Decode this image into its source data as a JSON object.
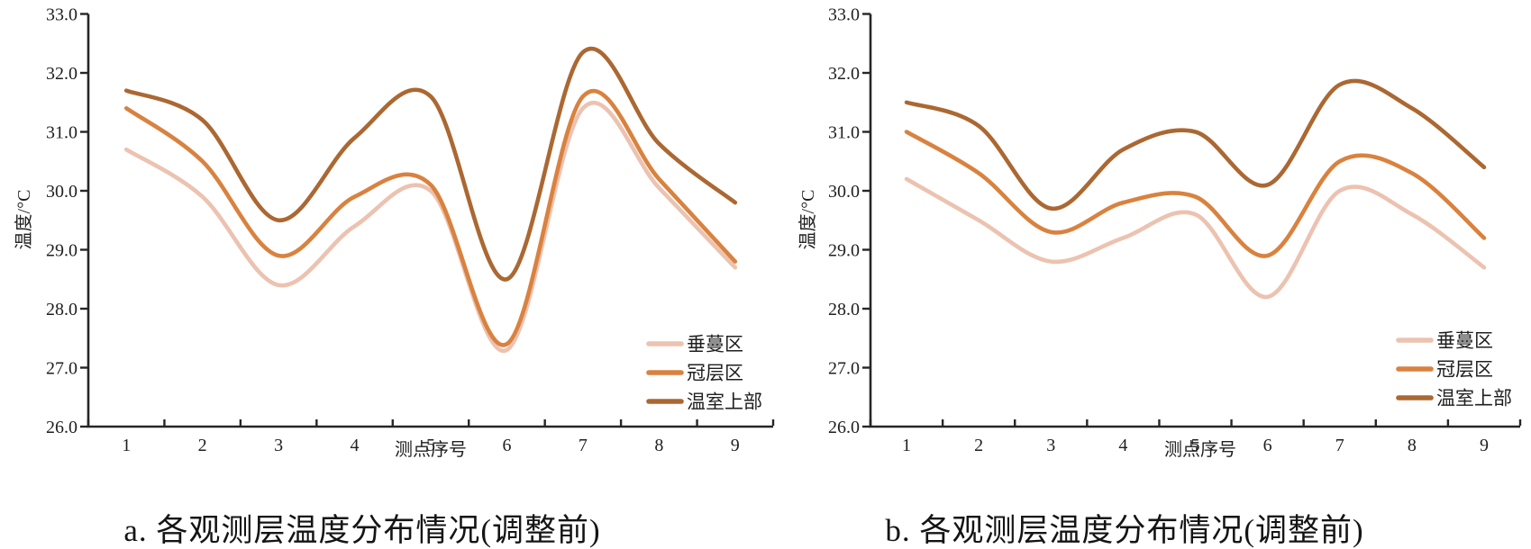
{
  "figures": [
    {
      "caption": "a. 各观测层温度分布情况(调整前)"
    },
    {
      "caption": "b. 各观测层温度分布情况(调整前)"
    }
  ],
  "style": {
    "axis_color": "#262626",
    "text_color": "#1f1f1f",
    "series_colors": {
      "vine": "#ecc2b0",
      "canopy": "#d9823f",
      "upper": "#ab6832"
    }
  },
  "chart_data": [
    {
      "type": "line",
      "title": "",
      "xlabel": "测点序号",
      "ylabel": "温度/°C",
      "x": [
        1,
        2,
        3,
        4,
        5,
        6,
        7,
        8,
        9
      ],
      "ylim": [
        26.0,
        33.0
      ],
      "ytick_step": 1.0,
      "grid": false,
      "line_style": "smooth",
      "legend_position": "inside-bottom-right",
      "series": [
        {
          "name": "垂蔓区",
          "color": "#ecc2b0",
          "values": [
            30.7,
            29.9,
            28.4,
            29.4,
            30.0,
            27.3,
            31.4,
            30.05,
            28.7
          ]
        },
        {
          "name": "冠层区",
          "color": "#d9823f",
          "values": [
            31.4,
            30.5,
            28.9,
            29.9,
            30.1,
            27.4,
            31.6,
            30.2,
            28.8
          ]
        },
        {
          "name": "温室上部",
          "color": "#ab6832",
          "values": [
            31.7,
            31.2,
            29.5,
            30.9,
            31.6,
            28.5,
            32.35,
            30.8,
            29.8
          ]
        }
      ]
    },
    {
      "type": "line",
      "title": "",
      "xlabel": "测点序号",
      "ylabel": "温度/°C",
      "x": [
        1,
        2,
        3,
        4,
        5,
        6,
        7,
        8,
        9
      ],
      "ylim": [
        26.0,
        33.0
      ],
      "ytick_step": 1.0,
      "grid": false,
      "line_style": "smooth",
      "legend_position": "inside-bottom-right",
      "series": [
        {
          "name": "垂蔓区",
          "color": "#ecc2b0",
          "values": [
            30.2,
            29.5,
            28.8,
            29.2,
            29.6,
            28.2,
            30.0,
            29.6,
            28.7
          ]
        },
        {
          "name": "冠层区",
          "color": "#d9823f",
          "values": [
            31.0,
            30.3,
            29.3,
            29.8,
            29.9,
            28.9,
            30.5,
            30.3,
            29.2
          ]
        },
        {
          "name": "温室上部",
          "color": "#ab6832",
          "values": [
            31.5,
            31.1,
            29.7,
            30.7,
            31.0,
            30.1,
            31.8,
            31.4,
            30.4
          ]
        }
      ]
    }
  ]
}
